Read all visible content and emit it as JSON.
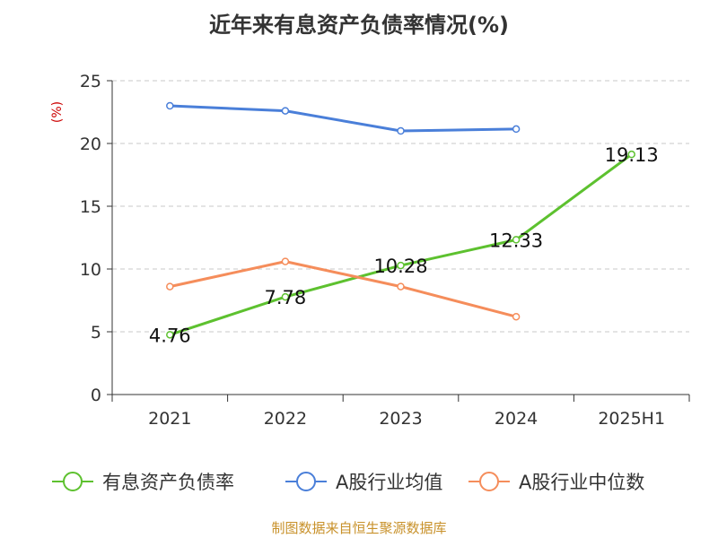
{
  "chart_data": {
    "type": "line",
    "title": "近年来有息资产负债率情况(%)",
    "ylabel": "(%)",
    "xlabel": "",
    "categories": [
      "2021",
      "2022",
      "2023",
      "2024",
      "2025H1"
    ],
    "ylim": [
      0,
      25
    ],
    "yticks": [
      0,
      5,
      10,
      15,
      20,
      25
    ],
    "grid": true,
    "legend_position": "bottom",
    "series": [
      {
        "name": "有息资产负债率",
        "color": "#5dc12f",
        "values": [
          4.76,
          7.78,
          10.28,
          12.33,
          19.13
        ],
        "labels": [
          "4.76",
          "7.78",
          "10.28",
          "12.33",
          "19.13"
        ]
      },
      {
        "name": "A股行业均值",
        "color": "#4a7fd9",
        "values": [
          23.0,
          22.6,
          21.0,
          21.15,
          null
        ]
      },
      {
        "name": "A股行业中位数",
        "color": "#f58d5b",
        "values": [
          8.6,
          10.6,
          8.6,
          6.2,
          null
        ]
      }
    ]
  },
  "footer": "制图数据来自恒生聚源数据库"
}
